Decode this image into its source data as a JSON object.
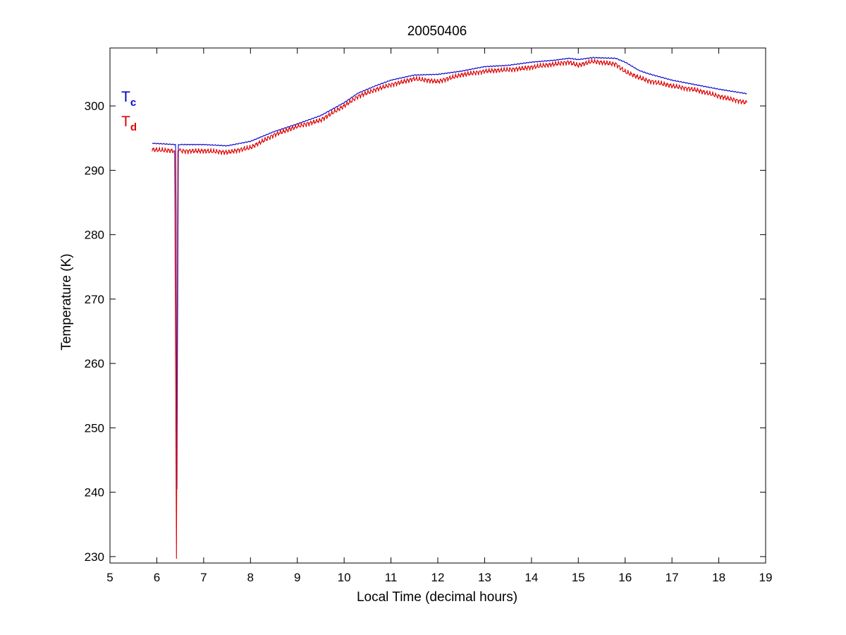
{
  "chart_data": {
    "type": "line",
    "title": "20050406",
    "xlabel": "Local Time (decimal hours)",
    "ylabel": "Temperature (K)",
    "xlim": [
      5,
      19
    ],
    "ylim": [
      229,
      309
    ],
    "xticks": [
      5,
      6,
      7,
      8,
      9,
      10,
      11,
      12,
      13,
      14,
      15,
      16,
      17,
      18,
      19
    ],
    "yticks": [
      230,
      240,
      250,
      260,
      270,
      280,
      290,
      300
    ],
    "grid": false,
    "legend": {
      "placement": "top-left",
      "entries": [
        {
          "main": "T",
          "sub": "c",
          "color": "#0000cc"
        },
        {
          "main": "T",
          "sub": "d",
          "color": "#dd0000"
        }
      ]
    },
    "series": [
      {
        "color": "#0000cc",
        "noise": 0.08,
        "x": [
          5.9,
          6.4,
          6.41,
          6.42,
          6.43,
          6.44,
          6.46,
          6.5,
          7.0,
          7.5,
          8.0,
          8.5,
          9.0,
          9.5,
          10.0,
          10.3,
          10.7,
          11.0,
          11.5,
          12.0,
          12.5,
          13.0,
          13.5,
          14.0,
          14.5,
          14.8,
          15.0,
          15.3,
          15.8,
          16.0,
          16.3,
          16.5,
          17.0,
          17.5,
          18.0,
          18.6
        ],
        "y": [
          294.2,
          294.0,
          283.0,
          262.0,
          240.5,
          262.0,
          294.0,
          294.0,
          294.0,
          293.8,
          294.5,
          296.0,
          297.2,
          298.5,
          300.5,
          302.0,
          303.2,
          304.0,
          304.8,
          304.9,
          305.4,
          306.1,
          306.3,
          306.8,
          307.1,
          307.4,
          307.2,
          307.5,
          307.4,
          306.8,
          305.5,
          305.0,
          304.0,
          303.3,
          302.6,
          301.9
        ]
      },
      {
        "color": "#dd0000",
        "noise": 0.45,
        "x": [
          5.9,
          6.37,
          6.38,
          6.42,
          6.45,
          6.47,
          6.5,
          7.0,
          7.5,
          8.0,
          8.5,
          9.0,
          9.5,
          10.0,
          10.3,
          10.7,
          11.0,
          11.5,
          12.0,
          12.5,
          13.0,
          13.5,
          14.0,
          14.5,
          14.8,
          15.0,
          15.3,
          15.8,
          16.0,
          16.3,
          16.5,
          17.0,
          17.5,
          18.0,
          18.6
        ],
        "y": [
          293.2,
          293.0,
          293.0,
          229.7,
          293.0,
          293.0,
          293.0,
          293.0,
          292.8,
          293.5,
          295.5,
          296.8,
          297.8,
          300.0,
          301.5,
          302.6,
          303.3,
          304.2,
          303.8,
          304.8,
          305.4,
          305.6,
          306.0,
          306.5,
          306.8,
          306.3,
          306.9,
          306.5,
          305.3,
          304.4,
          303.9,
          303.1,
          302.5,
          301.5,
          300.5
        ]
      }
    ]
  }
}
